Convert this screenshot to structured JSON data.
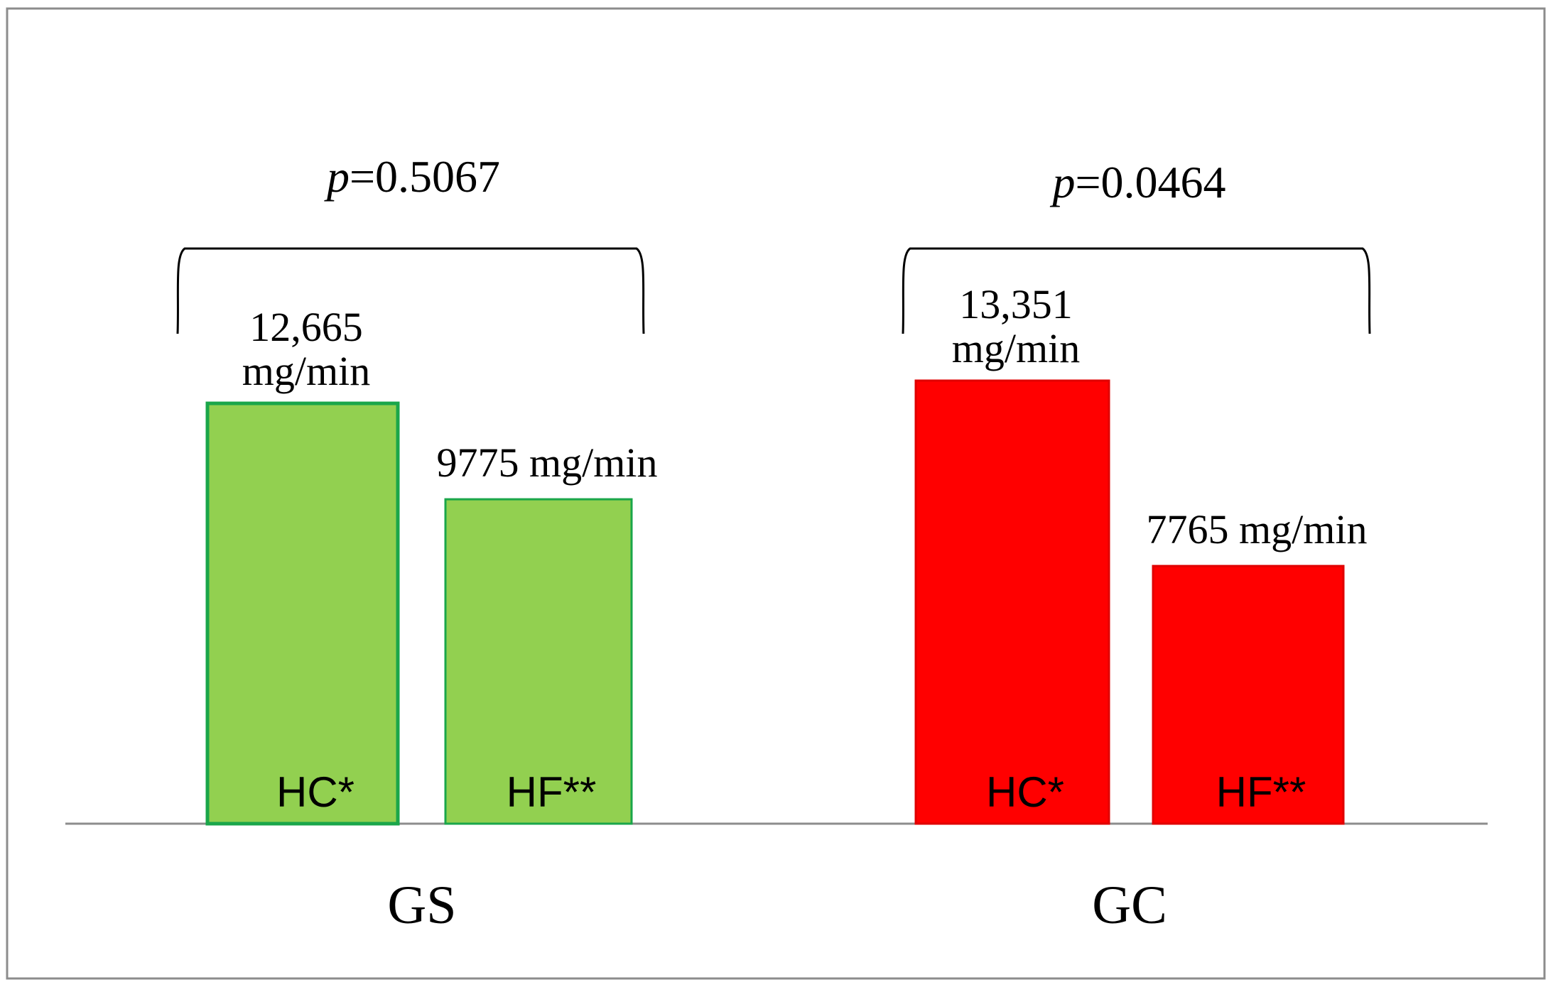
{
  "chart_data": {
    "type": "bar",
    "categories": [
      "GS",
      "GC"
    ],
    "series": [
      {
        "name": "HC*",
        "values": [
          12665,
          13351
        ]
      },
      {
        "name": "HF**",
        "values": [
          9775,
          7765
        ]
      }
    ],
    "value_labels": [
      [
        "12,665 mg/min",
        "9775 mg/min"
      ],
      [
        "13,351 mg/min",
        "7765 mg/min"
      ]
    ],
    "bar_labels": [
      [
        "HC*",
        "HF**"
      ],
      [
        "HC*",
        "HF**"
      ]
    ],
    "p_values": [
      {
        "prefix": "p",
        "value": "=0.5067"
      },
      {
        "prefix": "p",
        "value": "=0.0464"
      }
    ],
    "title": "",
    "xlabel": "",
    "ylabel": "",
    "ylim": [
      0,
      13351
    ],
    "grid": false,
    "legend": "none",
    "colors": {
      "gs_fill": "#92d050",
      "gs_stroke": "#1aa64a",
      "gc_fill": "#ff0000",
      "gc_stroke": "#e00000",
      "frame": "#8c8c8c",
      "baseline": "#8c8c8c"
    }
  }
}
